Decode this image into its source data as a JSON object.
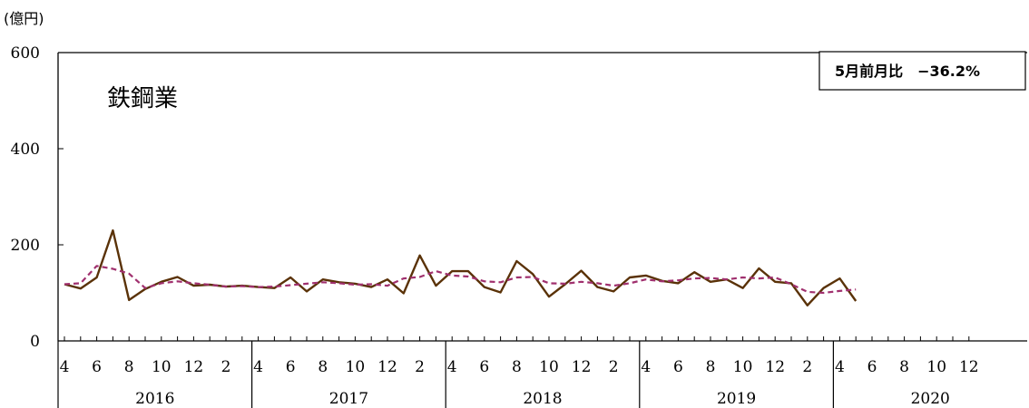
{
  "chart_data": {
    "type": "line",
    "title": "鉄鋼業",
    "unit_label": "(億円)",
    "annotation": "5月前月比　−36.2%",
    "ylim": [
      0,
      600
    ],
    "y_ticks": [
      "0",
      "200",
      "400",
      "600"
    ],
    "x_start": "2016-04",
    "x_end": "2020-12",
    "month_tick_labels": [
      "4",
      "6",
      "8",
      "10",
      "12",
      "2"
    ],
    "year_labels": [
      "2016",
      "2017",
      "2018",
      "2019",
      "2020"
    ],
    "grid": false,
    "colors": {
      "actual": "#5a3208",
      "trend": "#a0306e",
      "axis": "#000000"
    },
    "series": [
      {
        "style": "solid",
        "start": "2016-04",
        "values": [
          118,
          109,
          132,
          230,
          85,
          108,
          123,
          133,
          115,
          117,
          113,
          115,
          112,
          110,
          132,
          103,
          128,
          122,
          119,
          112,
          128,
          99,
          178,
          115,
          145,
          145,
          112,
          101,
          166,
          139,
          92,
          118,
          146,
          112,
          103,
          132,
          136,
          125,
          120,
          143,
          123,
          128,
          110,
          151,
          123,
          120,
          74,
          110,
          130,
          83
        ]
      },
      {
        "style": "dashed",
        "start": "2016-04",
        "values": [
          118,
          120,
          156,
          150,
          140,
          110,
          120,
          124,
          120,
          117,
          113,
          114,
          112,
          113,
          116,
          119,
          122,
          120,
          117,
          118,
          115,
          130,
          133,
          145,
          136,
          134,
          124,
          122,
          132,
          133,
          120,
          119,
          123,
          120,
          115,
          120,
          128,
          124,
          126,
          130,
          131,
          128,
          132,
          130,
          132,
          118,
          102,
          100,
          104,
          107
        ]
      }
    ]
  }
}
